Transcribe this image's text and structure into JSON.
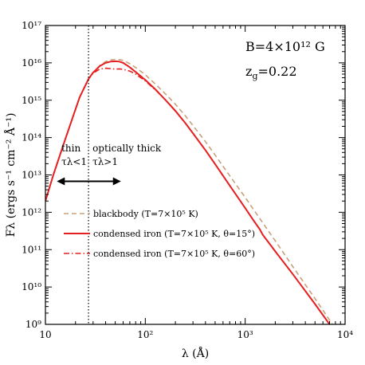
{
  "chart_data": {
    "type": "line",
    "xlabel": "λ (Å)",
    "ylabel": "Fλ (ergs s⁻¹ cm⁻² Å⁻¹)",
    "x_scale": "log",
    "y_scale": "log",
    "xlim": [
      10,
      10000
    ],
    "ylim": [
      1000000000.0,
      1e+17
    ],
    "x_ticks": [
      {
        "value": 10,
        "label": "10"
      },
      {
        "value": 100,
        "label": "10²"
      },
      {
        "value": 1000,
        "label": "10³"
      },
      {
        "value": 10000,
        "label": "10⁴"
      }
    ],
    "y_ticks": [
      {
        "value": 1000000000.0,
        "label": "10⁹"
      },
      {
        "value": 10000000000.0,
        "label": "10¹⁰"
      },
      {
        "value": 100000000000.0,
        "label": "10¹¹"
      },
      {
        "value": 1000000000000.0,
        "label": "10¹²"
      },
      {
        "value": 10000000000000.0,
        "label": "10¹³"
      },
      {
        "value": 100000000000000.0,
        "label": "10¹⁴"
      },
      {
        "value": 1000000000000000.0,
        "label": "10¹⁵"
      },
      {
        "value": 1e+16,
        "label": "10¹⁶"
      },
      {
        "value": 1e+17,
        "label": "10¹⁷"
      }
    ],
    "annotations": {
      "field": "B=4×10¹² G",
      "redshift": "z",
      "redshift_sub": "g",
      "redshift_value": "=0.22",
      "thin": "thin",
      "thick": "optically thick",
      "tau_thin": "τλ<1",
      "tau_thick": "τλ>1"
    },
    "divider_x": 27,
    "arrows": {
      "left_to": 13,
      "right_to": 57,
      "y": 10000000000000.0
    },
    "series": [
      {
        "name": "blackbody (T=7×10⁵ K)",
        "style": "dashed",
        "color": "#c8a07a",
        "x": [
          10,
          12,
          15,
          18,
          22,
          27,
          30,
          35,
          40,
          45,
          50,
          55,
          60,
          70,
          80,
          100,
          130,
          160,
          200,
          250,
          300,
          400,
          500,
          700,
          1000,
          1500,
          2000,
          3000,
          5000,
          7000,
          10000
        ],
        "y": [
          2000000000000.0,
          10000000000000.0,
          60000000000000.0,
          250000000000000.0,
          1200000000000000.0,
          3700000000000000.0,
          5500000000000000.0,
          8500000000000000.0,
          1.08e+16,
          1.2e+16,
          1.24e+16,
          1.22e+16,
          1.16e+16,
          9500000000000000.0,
          7500000000000000.0,
          4800000000000000.0,
          2500000000000000.0,
          1450000000000000.0,
          780000000000000.0,
          390000000000000.0,
          210000000000000.0,
          78000000000000.0,
          34000000000000.0,
          9500000000000.0,
          2500000000000.0,
          520000000000.0,
          172000000000.0,
          35000000000.0,
          4900000000.0,
          1300000000.0,
          330000000.0
        ]
      },
      {
        "name": "condensed iron (T=7×10⁵ K, θ=15°)",
        "style": "solid",
        "color": "#e62020",
        "x": [
          10,
          12,
          15,
          18,
          22,
          27,
          30,
          35,
          40,
          45,
          50,
          55,
          60,
          70,
          80,
          100,
          130,
          160,
          200,
          250,
          300,
          400,
          500,
          700,
          1000,
          1200,
          1400,
          1500,
          2000,
          3000,
          5000,
          7000,
          10000
        ],
        "y": [
          2000000000000.0,
          10000000000000.0,
          60000000000000.0,
          250000000000000.0,
          1200000000000000.0,
          3700000000000000.0,
          5500000000000000.0,
          8200000000000000.0,
          1e+16,
          1.08e+16,
          1.1e+16,
          1.08e+16,
          1e+16,
          7600000000000000.0,
          5700000000000000.0,
          3500000000000000.0,
          1800000000000000.0,
          1000000000000000.0,
          520000000000000.0,
          250000000000000.0,
          130000000000000.0,
          46000000000000.0,
          19500000000000.0,
          5200000000000.0,
          1300000000000.0,
          630000000000.0,
          350000000000.0,
          250000000000.0,
          90000000000.0,
          22000000000.0,
          3500000000.0,
          1000000000.0,
          300000000.0
        ]
      },
      {
        "name": "condensed iron (T=7×10⁵ K, θ=60°)",
        "style": "dashdot",
        "color": "#e62020",
        "x": [
          10,
          12,
          15,
          18,
          22,
          27,
          30,
          35,
          40,
          45,
          50,
          55,
          60,
          70,
          80,
          100,
          130,
          160,
          200,
          250,
          300,
          400,
          500,
          700,
          1000,
          1200,
          1400,
          1500,
          2000,
          3000,
          5000,
          7000,
          10000
        ],
        "y": [
          2000000000000.0,
          10000000000000.0,
          60000000000000.0,
          250000000000000.0,
          1200000000000000.0,
          3700000000000000.0,
          5300000000000000.0,
          6800000000000000.0,
          7200000000000000.0,
          7000000000000000.0,
          6800000000000000.0,
          6900000000000000.0,
          6700000000000000.0,
          6000000000000000.0,
          5000000000000000.0,
          3300000000000000.0,
          1750000000000000.0,
          1000000000000000.0,
          510000000000000.0,
          250000000000000.0,
          130000000000000.0,
          46000000000000.0,
          19500000000000.0,
          5200000000000.0,
          1300000000000.0,
          630000000000.0,
          350000000000.0,
          250000000000.0,
          90000000000.0,
          22000000000.0,
          3500000000.0,
          1000000000.0,
          300000000.0
        ]
      }
    ],
    "legend": [
      {
        "series": 0,
        "text": "blackbody (T=7×10⁵ K)"
      },
      {
        "series": 1,
        "text": "condensed iron (T=7×10⁵ K, θ=15°)"
      },
      {
        "series": 2,
        "text": "condensed iron (T=7×10⁵ K, θ=60°)"
      }
    ]
  }
}
